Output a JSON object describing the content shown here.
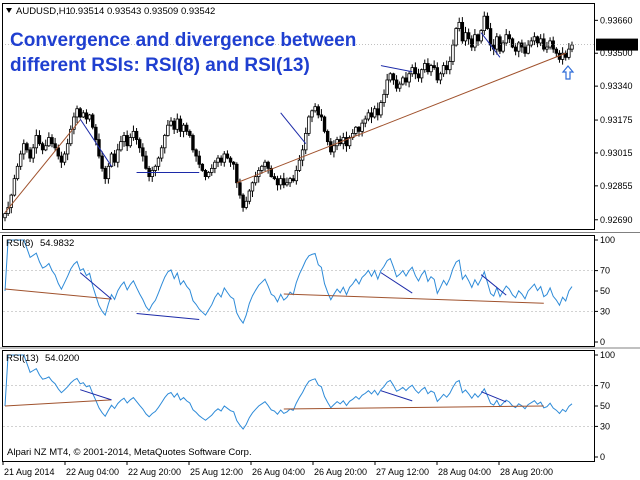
{
  "header": {
    "symbol_label": "AUDUSD,H1",
    "ohlc": "0.93514 0.93543 0.93509 0.93542"
  },
  "overlay_title": {
    "line1": "Convergence and divergence between",
    "line2": "different RSIs: RSI(8) and RSI(13)"
  },
  "copyright": "Alpari NZ MT4, © 2001-2014, MetaQuotes Software Corp.",
  "colors": {
    "candle": "#000000",
    "rsi_line": "#2e8bd8",
    "blue_trend": "#1c2aa8",
    "brown_trend": "#a0522d",
    "title": "#1f3fd0",
    "price_tag_bg": "#000000",
    "price_tag_fg": "#ffffff",
    "grid": "#b8b8b8"
  },
  "icons": {
    "arrow": "up-arrow-icon"
  },
  "chart_data": [
    {
      "type": "candlestick",
      "title": "AUDUSD,H1",
      "y_ticks": [
        "0.93660",
        "0.93500",
        "0.93340",
        "0.93175",
        "0.93015",
        "0.92855",
        "0.92690"
      ],
      "ylim": [
        0.9265,
        0.9372
      ],
      "current_price": "0.93542",
      "x_ticks": [
        "21 Aug 2014",
        "22 Aug 04:00",
        "22 Aug 20:00",
        "25 Aug 12:00",
        "26 Aug 04:00",
        "26 Aug 20:00",
        "27 Aug 12:00",
        "28 Aug 04:00",
        "28 Aug 20:00"
      ],
      "close": [
        0.9272,
        0.9275,
        0.9281,
        0.9289,
        0.9295,
        0.9301,
        0.9306,
        0.9303,
        0.9299,
        0.9304,
        0.931,
        0.9306,
        0.9303,
        0.9305,
        0.9309,
        0.9306,
        0.9304,
        0.93,
        0.9297,
        0.9301,
        0.9306,
        0.9313,
        0.9319,
        0.9323,
        0.9319,
        0.9321,
        0.9318,
        0.932,
        0.9314,
        0.9308,
        0.93,
        0.9294,
        0.9289,
        0.9295,
        0.9301,
        0.9297,
        0.9303,
        0.9307,
        0.931,
        0.9305,
        0.9309,
        0.9312,
        0.9308,
        0.9304,
        0.93,
        0.9294,
        0.929,
        0.9293,
        0.9295,
        0.9299,
        0.9304,
        0.931,
        0.9315,
        0.9317,
        0.9313,
        0.9318,
        0.9312,
        0.9315,
        0.9312,
        0.931,
        0.9303,
        0.93,
        0.9296,
        0.9293,
        0.929,
        0.9292,
        0.9294,
        0.9297,
        0.9299,
        0.9297,
        0.9301,
        0.9299,
        0.9297,
        0.9296,
        0.9287,
        0.9281,
        0.9275,
        0.9278,
        0.9283,
        0.9287,
        0.929,
        0.9293,
        0.9295,
        0.9297,
        0.9294,
        0.929,
        0.9289,
        0.9286,
        0.9289,
        0.9286,
        0.9287,
        0.9289,
        0.9288,
        0.9293,
        0.9298,
        0.9303,
        0.9311,
        0.9319,
        0.9322,
        0.9324,
        0.932,
        0.9319,
        0.9312,
        0.9307,
        0.9302,
        0.9305,
        0.9308,
        0.9306,
        0.9309,
        0.9305,
        0.9309,
        0.9311,
        0.9314,
        0.9312,
        0.9316,
        0.9318,
        0.9321,
        0.9319,
        0.9323,
        0.932,
        0.9326,
        0.933,
        0.9337,
        0.934,
        0.9337,
        0.9333,
        0.9335,
        0.9338,
        0.9336,
        0.934,
        0.9343,
        0.934,
        0.9338,
        0.9342,
        0.9345,
        0.9341,
        0.9344,
        0.9343,
        0.9337,
        0.934,
        0.9344,
        0.9342,
        0.9346,
        0.9354,
        0.9362,
        0.9365,
        0.9356,
        0.936,
        0.9357,
        0.9353,
        0.9359,
        0.9356,
        0.9361,
        0.9368,
        0.9362,
        0.9354,
        0.9352,
        0.9358,
        0.9351,
        0.9355,
        0.9359,
        0.9357,
        0.9353,
        0.9351,
        0.9355,
        0.9353,
        0.935,
        0.9354,
        0.9356,
        0.9358,
        0.9355,
        0.9357,
        0.9352,
        0.9353,
        0.9356,
        0.9352,
        0.935,
        0.9347,
        0.935,
        0.9348,
        0.9352,
        0.9354
      ]
    },
    {
      "type": "line",
      "title": "RSI(8)",
      "value_label": "54.9832",
      "y_ticks": [
        "100",
        "70",
        "50",
        "30",
        "0"
      ],
      "ylim": [
        0,
        100
      ]
    },
    {
      "type": "line",
      "title": "RSI(13)",
      "value_label": "54.0200",
      "y_ticks": [
        "100",
        "70",
        "50",
        "30",
        "0"
      ],
      "ylim": [
        0,
        100
      ]
    }
  ]
}
